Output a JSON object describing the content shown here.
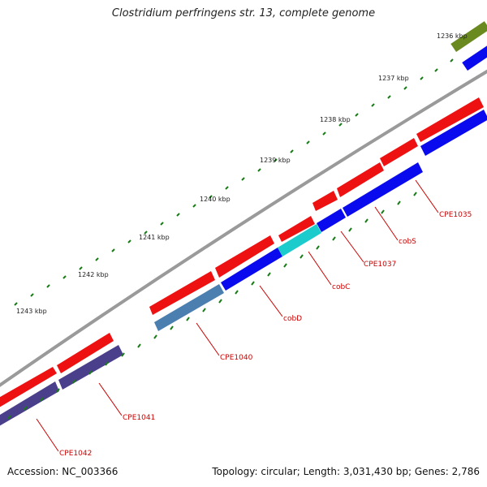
{
  "title": "Clostridium perfringens str. 13, complete genome",
  "footer": {
    "accession": "Accession: NC_003366",
    "stats": "Topology: circular; Length: 3,031,430 bp; Genes: 2,786"
  },
  "colors": {
    "backbone": "#9a9a9a",
    "tick": "#1a7a1a",
    "forward_cds": "#ee1111",
    "reverse_cds": "#0a0aee",
    "cyan": "#1ccccc",
    "steelblue": "#4a7fb0",
    "slate": "#4a3f8a",
    "olive": "#6a8a20",
    "label": "#cc0000"
  },
  "kbp_labels": [
    "1236 kbp",
    "1237 kbp",
    "1238 kbp",
    "1239 kbp",
    "1240 kbp",
    "1241 kbp",
    "1242 kbp",
    "1243 kbp"
  ],
  "genes": [
    {
      "id": "CPE1035",
      "label": "CPE1035"
    },
    {
      "id": "cobS",
      "label": "cobS"
    },
    {
      "id": "CPE1037",
      "label": "CPE1037"
    },
    {
      "id": "cobC",
      "label": "cobC"
    },
    {
      "id": "cobD",
      "label": "cobD"
    },
    {
      "id": "CPE1040",
      "label": "CPE1040"
    },
    {
      "id": "CPE1041",
      "label": "CPE1041"
    },
    {
      "id": "CPE1042",
      "label": "CPE1042"
    }
  ]
}
